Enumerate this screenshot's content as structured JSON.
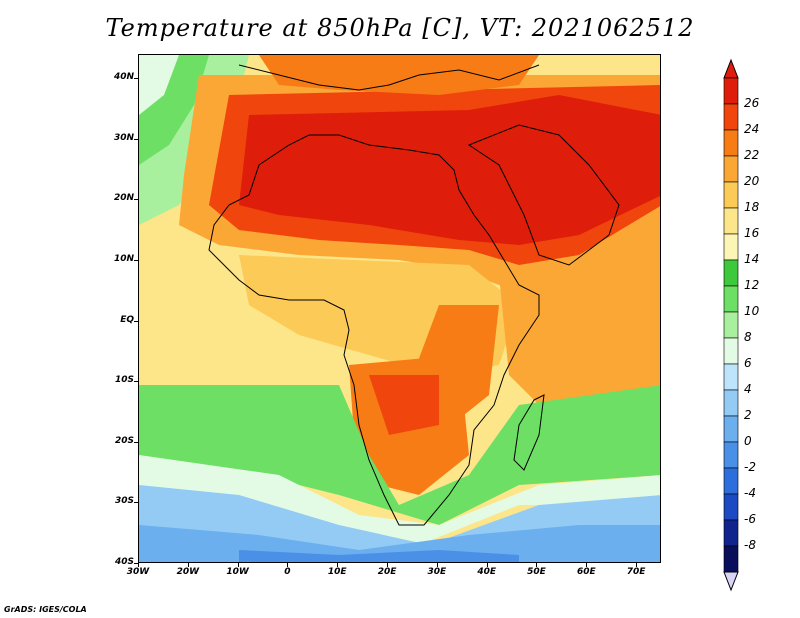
{
  "title": "Temperature at 850hPa [C], VT: 2021062512",
  "credit": "GrADS: IGES/COLA",
  "lat_labels": [
    "40N",
    "30N",
    "20N",
    "10N",
    "EQ",
    "10S",
    "20S",
    "30S",
    "40S"
  ],
  "lon_labels": [
    "30W",
    "20W",
    "10W",
    "0",
    "10E",
    "20E",
    "30E",
    "40E",
    "50E",
    "60E",
    "70E"
  ],
  "extent": {
    "lon_min": -30,
    "lon_max": 75,
    "lat_min": -40,
    "lat_max": 44
  },
  "colorbar": {
    "labels": [
      "26",
      "24",
      "22",
      "20",
      "18",
      "16",
      "14",
      "12",
      "10",
      "8",
      "6",
      "4",
      "2",
      "0",
      "-2",
      "-4",
      "-6",
      "-8"
    ],
    "colors": [
      "#de1e0a",
      "#f0450c",
      "#f77c16",
      "#fba735",
      "#fcca56",
      "#fde68a",
      "#fbf6b6",
      "#3ec93c",
      "#6ddf65",
      "#a8f09d",
      "#e3fbe4",
      "#bde4fb",
      "#93cbf5",
      "#6bafef",
      "#4a90e6",
      "#2c6fdc",
      "#1b4ac2",
      "#11248e",
      "#0a0f5c"
    ],
    "overflow_top": "#de1e0a",
    "underflow_bottom": "#d8d4f5"
  },
  "regions": {
    "ocean_north_cool": "#93cbf5",
    "ocean_south_cool": "#6bafef",
    "sahara_hot": "#de1e0a",
    "arabia_hot": "#de1e0a",
    "east_africa_warm": "#f77c16",
    "southern_africa_warm": "#f77c16",
    "congo_mild": "#fcca56",
    "atlantic_tropical": "#fde68a",
    "indian_ocean_tropical": "#fcca56",
    "southern_ocean_green": "#6ddf65",
    "antarctic_blue": "#4a90e6"
  }
}
